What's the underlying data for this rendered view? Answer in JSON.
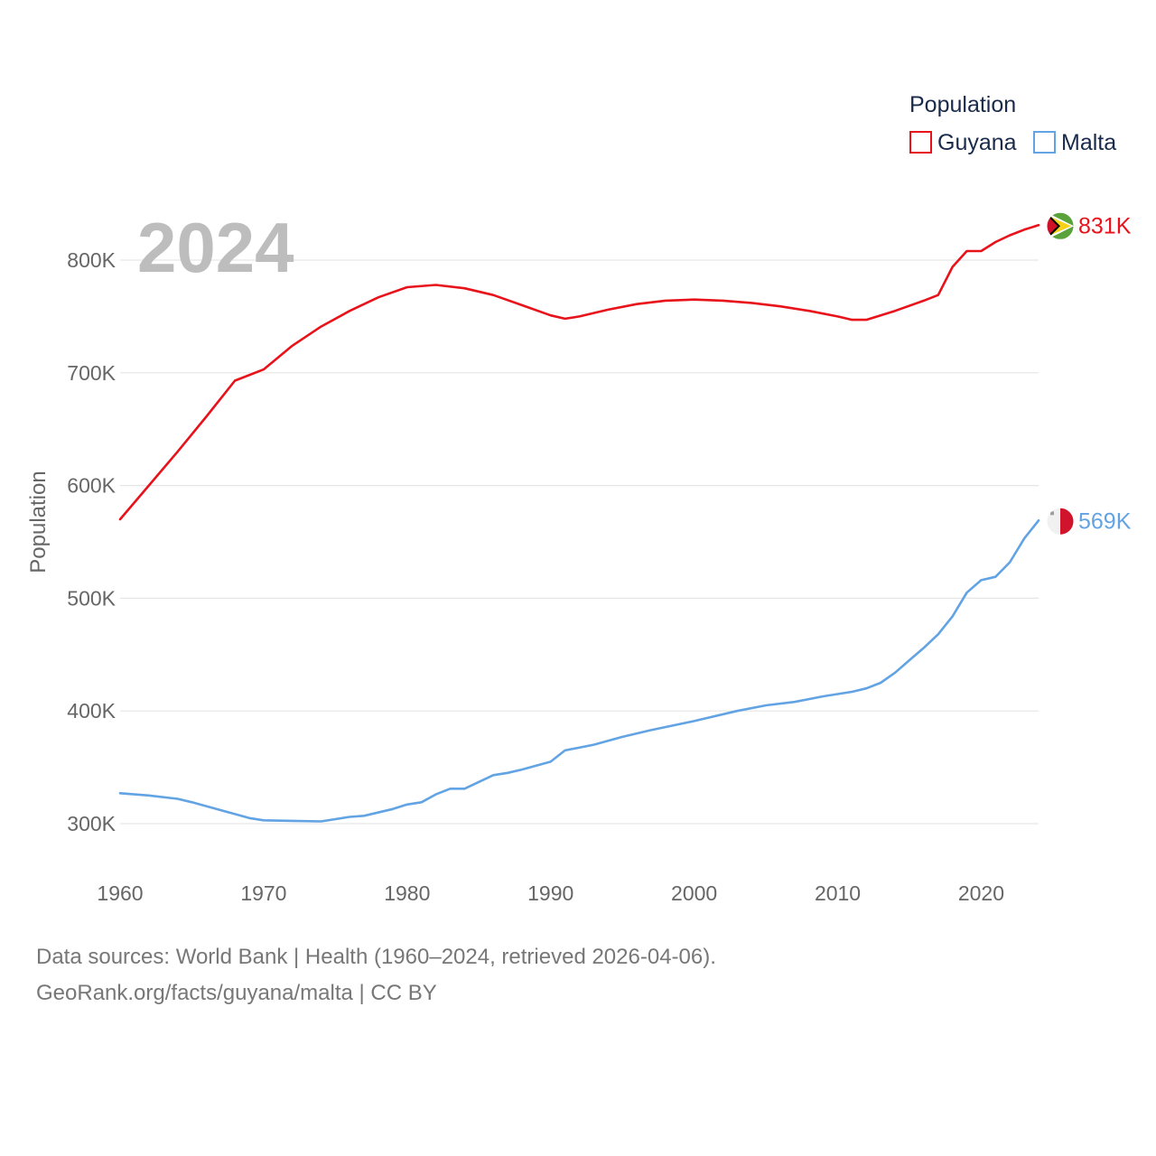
{
  "chart_data": {
    "type": "line",
    "big_year": "2024",
    "ylabel": "Population",
    "ylim": [
      260000,
      870000
    ],
    "xlim": [
      1960,
      2024
    ],
    "yticks": [
      {
        "value": 300000,
        "label": "300K"
      },
      {
        "value": 400000,
        "label": "400K"
      },
      {
        "value": 500000,
        "label": "500K"
      },
      {
        "value": 600000,
        "label": "600K"
      },
      {
        "value": 700000,
        "label": "700K"
      },
      {
        "value": 800000,
        "label": "800K"
      }
    ],
    "xticks": [
      {
        "value": 1960,
        "label": "1960"
      },
      {
        "value": 1970,
        "label": "1970"
      },
      {
        "value": 1980,
        "label": "1980"
      },
      {
        "value": 1990,
        "label": "1990"
      },
      {
        "value": 2000,
        "label": "2000"
      },
      {
        "value": 2010,
        "label": "2010"
      },
      {
        "value": 2020,
        "label": "2020"
      }
    ],
    "legend": {
      "title": "Population",
      "position": "top-right"
    },
    "series": [
      {
        "name": "Guyana",
        "color": "#e8121b",
        "end_label": "831K",
        "flag": "guyana-flag",
        "x": [
          1960,
          1962,
          1964,
          1966,
          1968,
          1970,
          1972,
          1974,
          1976,
          1978,
          1980,
          1982,
          1984,
          1986,
          1988,
          1990,
          1991,
          1992,
          1994,
          1996,
          1998,
          2000,
          2002,
          2004,
          2006,
          2008,
          2010,
          2011,
          2012,
          2014,
          2016,
          2017,
          2018,
          2019,
          2020,
          2021,
          2022,
          2023,
          2024
        ],
        "values": [
          570000,
          600000,
          630000,
          661000,
          693000,
          703000,
          724000,
          741000,
          755000,
          767000,
          776000,
          778000,
          775000,
          769000,
          760000,
          751000,
          748000,
          750000,
          756000,
          761000,
          764000,
          765000,
          764000,
          762000,
          759000,
          755000,
          750000,
          747000,
          747000,
          755000,
          764000,
          769000,
          794000,
          808000,
          808000,
          816000,
          822000,
          827000,
          831000
        ]
      },
      {
        "name": "Malta",
        "color": "#62a3e3",
        "end_label": "569K",
        "flag": "malta-flag",
        "x": [
          1960,
          1962,
          1964,
          1965,
          1967,
          1969,
          1970,
          1972,
          1974,
          1975,
          1976,
          1977,
          1979,
          1980,
          1981,
          1982,
          1983,
          1984,
          1985,
          1986,
          1987,
          1988,
          1990,
          1991,
          1993,
          1995,
          1997,
          2000,
          2003,
          2005,
          2007,
          2009,
          2011,
          2012,
          2013,
          2014,
          2015,
          2016,
          2017,
          2018,
          2019,
          2020,
          2021,
          2022,
          2023,
          2024
        ],
        "values": [
          327000,
          325000,
          322000,
          319000,
          312000,
          305000,
          303000,
          302500,
          302000,
          304000,
          306000,
          307000,
          313000,
          317000,
          319000,
          326000,
          331000,
          331000,
          337000,
          343000,
          345000,
          348000,
          355000,
          365000,
          370000,
          377000,
          383000,
          391000,
          400000,
          405000,
          408000,
          413000,
          417000,
          420000,
          425000,
          434000,
          445000,
          456000,
          468000,
          484000,
          505000,
          516000,
          519000,
          532000,
          553000,
          569000
        ]
      }
    ]
  },
  "footer": {
    "line1": "Data sources: World Bank | Health (1960–2024, retrieved 2026-04-06).",
    "line2": "GeoRank.org/facts/guyana/malta | CC BY"
  }
}
